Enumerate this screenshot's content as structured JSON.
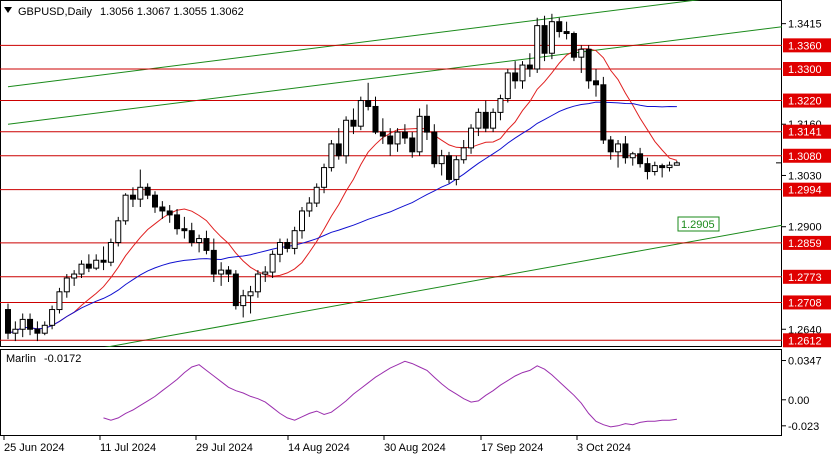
{
  "header": {
    "symbol_timeframe": "GBPUSD,Daily",
    "ohlc": "1.3056 1.3067 1.3055 1.3062"
  },
  "colors": {
    "background": "#ffffff",
    "axis": "#000000",
    "grid": "#c8c8c8",
    "level_line": "#cc0000",
    "level_label_fill": "#e00000",
    "channel_line": "#1a8a1a",
    "ma_fast": "#e02020",
    "ma_slow": "#1010d0",
    "oscillator": "#9b2fae",
    "candle": "#000000"
  },
  "chart_data": [
    {
      "type": "candlestick",
      "title": "",
      "x_tick_labels": [
        "25 Jun 2024",
        "11 Jul 2024",
        "29 Jul 2024",
        "14 Aug 2024",
        "30 Aug 2024",
        "17 Sep 2024",
        "3 Oct 2024"
      ],
      "y_tick_labels": [
        "1.3415",
        "1.3160",
        "1.3030",
        "1.2900",
        "1.2640"
      ],
      "ylim": [
        1.2595,
        1.3475
      ],
      "grid": false,
      "candles": [
        [
          1.269,
          1.2705,
          1.2615,
          1.263
        ],
        [
          1.263,
          1.266,
          1.261,
          1.264
        ],
        [
          1.264,
          1.268,
          1.262,
          1.2665
        ],
        [
          1.2665,
          1.268,
          1.2625,
          1.264
        ],
        [
          1.264,
          1.266,
          1.261,
          1.263
        ],
        [
          1.263,
          1.266,
          1.2625,
          1.265
        ],
        [
          1.265,
          1.27,
          1.264,
          1.269
        ],
        [
          1.269,
          1.2745,
          1.268,
          1.2735
        ],
        [
          1.2735,
          1.278,
          1.272,
          1.277
        ],
        [
          1.277,
          1.279,
          1.275,
          1.278
        ],
        [
          1.278,
          1.2815,
          1.277,
          1.2805
        ],
        [
          1.2805,
          1.283,
          1.2785,
          1.2795
        ],
        [
          1.2795,
          1.283,
          1.279,
          1.2815
        ],
        [
          1.2815,
          1.285,
          1.279,
          1.281
        ],
        [
          1.281,
          1.287,
          1.28,
          1.286
        ],
        [
          1.286,
          1.2925,
          1.285,
          1.2915
        ],
        [
          1.2915,
          1.2985,
          1.2905,
          1.298
        ],
        [
          1.298,
          1.3,
          1.295,
          1.297
        ],
        [
          1.297,
          1.3045,
          1.295,
          1.3
        ],
        [
          1.3,
          1.301,
          1.297,
          1.298
        ],
        [
          1.298,
          1.299,
          1.2935,
          1.295
        ],
        [
          1.295,
          1.2965,
          1.292,
          1.294
        ],
        [
          1.294,
          1.2955,
          1.291,
          1.293
        ],
        [
          1.293,
          1.2945,
          1.288,
          1.2895
        ],
        [
          1.2895,
          1.2925,
          1.287,
          1.289
        ],
        [
          1.289,
          1.291,
          1.285,
          1.286
        ],
        [
          1.286,
          1.288,
          1.2835,
          1.287
        ],
        [
          1.287,
          1.289,
          1.283,
          1.284
        ],
        [
          1.284,
          1.287,
          1.276,
          1.278
        ],
        [
          1.278,
          1.281,
          1.275,
          1.279
        ],
        [
          1.279,
          1.28,
          1.276,
          1.278
        ],
        [
          1.278,
          1.279,
          1.269,
          1.27
        ],
        [
          1.27,
          1.274,
          1.267,
          1.2725
        ],
        [
          1.2725,
          1.275,
          1.268,
          1.2735
        ],
        [
          1.2735,
          1.279,
          1.272,
          1.278
        ],
        [
          1.278,
          1.28,
          1.276,
          1.2785
        ],
        [
          1.2785,
          1.284,
          1.277,
          1.283
        ],
        [
          1.283,
          1.287,
          1.281,
          1.286
        ],
        [
          1.286,
          1.287,
          1.2835,
          1.2845
        ],
        [
          1.2845,
          1.29,
          1.283,
          1.289
        ],
        [
          1.289,
          1.295,
          1.287,
          1.294
        ],
        [
          1.294,
          1.2975,
          1.2925,
          1.296
        ],
        [
          1.296,
          1.301,
          1.295,
          1.3
        ],
        [
          1.3,
          1.306,
          1.2985,
          1.305
        ],
        [
          1.305,
          1.312,
          1.304,
          1.311
        ],
        [
          1.311,
          1.315,
          1.307,
          1.308
        ],
        [
          1.308,
          1.318,
          1.306,
          1.317
        ],
        [
          1.317,
          1.32,
          1.3135,
          1.3155
        ],
        [
          1.3155,
          1.323,
          1.3145,
          1.322
        ],
        [
          1.322,
          1.3265,
          1.3195,
          1.3205
        ],
        [
          1.3205,
          1.323,
          1.3135,
          1.314
        ],
        [
          1.314,
          1.3175,
          1.311,
          1.313
        ],
        [
          1.313,
          1.315,
          1.308,
          1.311
        ],
        [
          1.311,
          1.315,
          1.309,
          1.314
        ],
        [
          1.314,
          1.316,
          1.311,
          1.3125
        ],
        [
          1.3125,
          1.314,
          1.3075,
          1.309
        ],
        [
          1.309,
          1.32,
          1.308,
          1.318
        ],
        [
          1.318,
          1.321,
          1.312,
          1.314
        ],
        [
          1.314,
          1.316,
          1.305,
          1.306
        ],
        [
          1.306,
          1.3095,
          1.303,
          1.308
        ],
        [
          1.308,
          1.309,
          1.301,
          1.302
        ],
        [
          1.302,
          1.308,
          1.3005,
          1.307
        ],
        [
          1.307,
          1.312,
          1.306,
          1.31
        ],
        [
          1.31,
          1.316,
          1.3085,
          1.315
        ],
        [
          1.315,
          1.32,
          1.313,
          1.319
        ],
        [
          1.319,
          1.322,
          1.314,
          1.315
        ],
        [
          1.315,
          1.32,
          1.314,
          1.319
        ],
        [
          1.319,
          1.3235,
          1.317,
          1.3225
        ],
        [
          1.3225,
          1.33,
          1.3215,
          1.329
        ],
        [
          1.329,
          1.332,
          1.325,
          1.327
        ],
        [
          1.327,
          1.332,
          1.325,
          1.331
        ],
        [
          1.331,
          1.334,
          1.328,
          1.33
        ],
        [
          1.33,
          1.343,
          1.329,
          1.341
        ],
        [
          1.341,
          1.3435,
          1.332,
          1.334
        ],
        [
          1.334,
          1.344,
          1.3325,
          1.342
        ],
        [
          1.342,
          1.343,
          1.338,
          1.3395
        ],
        [
          1.3395,
          1.342,
          1.3375,
          1.339
        ],
        [
          1.339,
          1.3395,
          1.332,
          1.333
        ],
        [
          1.333,
          1.336,
          1.329,
          1.335
        ],
        [
          1.335,
          1.336,
          1.325,
          1.327
        ],
        [
          1.327,
          1.33,
          1.323,
          1.326
        ],
        [
          1.326,
          1.328,
          1.311,
          1.312
        ],
        [
          1.312,
          1.313,
          1.307,
          1.309
        ],
        [
          1.309,
          1.312,
          1.305,
          1.311
        ],
        [
          1.311,
          1.313,
          1.306,
          1.3075
        ],
        [
          1.3075,
          1.309,
          1.3055,
          1.3085
        ],
        [
          1.3085,
          1.31,
          1.305,
          1.306
        ],
        [
          1.306,
          1.3075,
          1.302,
          1.304
        ],
        [
          1.304,
          1.3065,
          1.303,
          1.3055
        ],
        [
          1.3055,
          1.306,
          1.3025,
          1.305
        ],
        [
          1.305,
          1.3065,
          1.304,
          1.3056
        ],
        [
          1.3056,
          1.3067,
          1.3055,
          1.3062
        ]
      ],
      "levels": [
        {
          "label": "1.3360",
          "value": 1.336
        },
        {
          "label": "1.3300",
          "value": 1.33
        },
        {
          "label": "1.3220",
          "value": 1.322
        },
        {
          "label": "1.3141",
          "value": 1.3141
        },
        {
          "label": "1.3080",
          "value": 1.308
        },
        {
          "label": "1.2994",
          "value": 1.2994
        },
        {
          "label": "1.2859",
          "value": 1.2859
        },
        {
          "label": "1.2773",
          "value": 1.2773
        },
        {
          "label": "1.2708",
          "value": 1.2708
        },
        {
          "label": "1.2612",
          "value": 1.2612
        }
      ],
      "channel_label": "1.2905",
      "channel_label_value": 1.2905,
      "current_price": "1.3062"
    },
    {
      "type": "line",
      "series_name": "Marlin",
      "last_value": "-0.0172",
      "y_tick_labels": [
        "0.0347",
        "0.00",
        "-0.023"
      ],
      "ylim": [
        -0.032,
        0.044
      ],
      "values": [
        -0.016,
        -0.018,
        -0.016,
        -0.012,
        -0.009,
        -0.005,
        -0.001,
        0.003,
        0.008,
        0.013,
        0.018,
        0.024,
        0.029,
        0.031,
        0.026,
        0.021,
        0.016,
        0.011,
        0.008,
        0.006,
        0.003,
        0.001,
        -0.002,
        -0.007,
        -0.012,
        -0.016,
        -0.018,
        -0.015,
        -0.012,
        -0.01,
        -0.013,
        -0.011,
        -0.006,
        -0.001,
        0.005,
        0.01,
        0.015,
        0.02,
        0.024,
        0.028,
        0.031,
        0.034,
        0.032,
        0.029,
        0.026,
        0.02,
        0.014,
        0.009,
        0.005,
        0.001,
        -0.002,
        -0.001,
        0.004,
        0.008,
        0.013,
        0.017,
        0.021,
        0.024,
        0.026,
        0.03,
        0.027,
        0.022,
        0.016,
        0.01,
        0.004,
        -0.003,
        -0.012,
        -0.019,
        -0.022,
        -0.024,
        -0.023,
        -0.021,
        -0.022,
        -0.02,
        -0.019,
        -0.019,
        -0.018,
        -0.018,
        -0.0172
      ]
    }
  ]
}
